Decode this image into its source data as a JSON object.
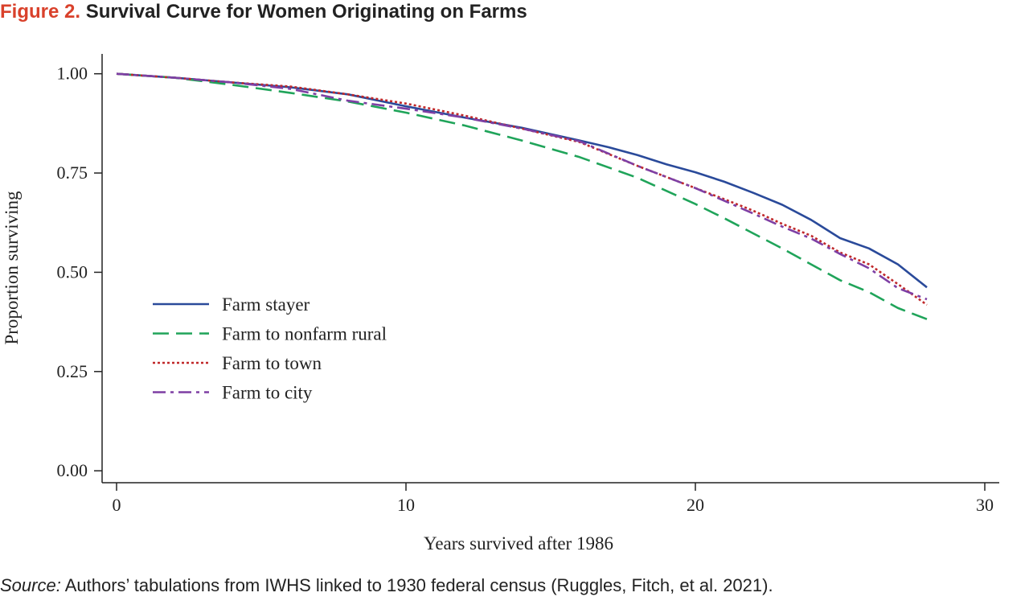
{
  "figure": {
    "label": "Figure 2.",
    "title": "Survival Curve for Women Originating on Farms",
    "source_lead": "Source:",
    "source_text": " Authors’ tabulations from IWHS linked to 1930 federal census (Ruggles, Fitch, et al. 2021)."
  },
  "chart_data": {
    "type": "line",
    "title": "",
    "xlabel": "Years survived after 1986",
    "ylabel": "Proportion surviving",
    "xlim": [
      -0.5,
      30.5
    ],
    "ylim": [
      -0.03,
      1.05
    ],
    "x_ticks": [
      0,
      10,
      20,
      30
    ],
    "x_tick_labels": [
      "0",
      "10",
      "20",
      "30"
    ],
    "y_ticks": [
      0,
      0.25,
      0.5,
      0.75,
      1.0
    ],
    "y_tick_labels": [
      "0.00",
      "0.25",
      "0.50",
      "0.75",
      "1.00"
    ],
    "grid": false,
    "legend": "inside lower-left",
    "series": [
      {
        "name": "Farm stayer",
        "color": "#2a4a9a",
        "dash": "solid",
        "x": [
          0,
          2,
          4,
          6,
          8,
          10,
          12,
          14,
          16,
          17,
          18,
          19,
          20,
          21,
          22,
          23,
          24,
          25,
          26,
          27,
          28
        ],
        "y": [
          1.0,
          0.99,
          0.978,
          0.966,
          0.948,
          0.918,
          0.89,
          0.864,
          0.832,
          0.815,
          0.795,
          0.772,
          0.752,
          0.728,
          0.7,
          0.67,
          0.632,
          0.586,
          0.56,
          0.52,
          0.462
        ]
      },
      {
        "name": "Farm to nonfarm rural",
        "color": "#20a45a",
        "dash": "dashed",
        "x": [
          0,
          2,
          4,
          6,
          8,
          10,
          12,
          14,
          16,
          18,
          20,
          21,
          22,
          23,
          24,
          25,
          26,
          27,
          28
        ],
        "y": [
          1.0,
          0.99,
          0.972,
          0.952,
          0.93,
          0.902,
          0.87,
          0.832,
          0.79,
          0.738,
          0.672,
          0.636,
          0.598,
          0.56,
          0.52,
          0.48,
          0.45,
          0.41,
          0.382
        ]
      },
      {
        "name": "Farm to town",
        "color": "#c0282a",
        "dash": "dotted",
        "x": [
          0,
          2,
          4,
          6,
          8,
          10,
          12,
          14,
          16,
          18,
          20,
          21,
          22,
          23,
          24,
          25,
          26,
          27,
          28
        ],
        "y": [
          1.0,
          0.99,
          0.978,
          0.968,
          0.948,
          0.925,
          0.895,
          0.862,
          0.828,
          0.768,
          0.712,
          0.684,
          0.655,
          0.622,
          0.592,
          0.55,
          0.52,
          0.47,
          0.418
        ]
      },
      {
        "name": "Farm to city",
        "color": "#7e3fa4",
        "dash": "dashdot",
        "x": [
          0,
          2,
          4,
          6,
          8,
          10,
          12,
          14,
          16,
          18,
          20,
          21,
          22,
          23,
          24,
          25,
          26,
          27,
          28
        ],
        "y": [
          1.0,
          0.99,
          0.978,
          0.962,
          0.932,
          0.912,
          0.89,
          0.862,
          0.83,
          0.768,
          0.712,
          0.68,
          0.648,
          0.615,
          0.585,
          0.546,
          0.51,
          0.46,
          0.432
        ]
      }
    ]
  }
}
